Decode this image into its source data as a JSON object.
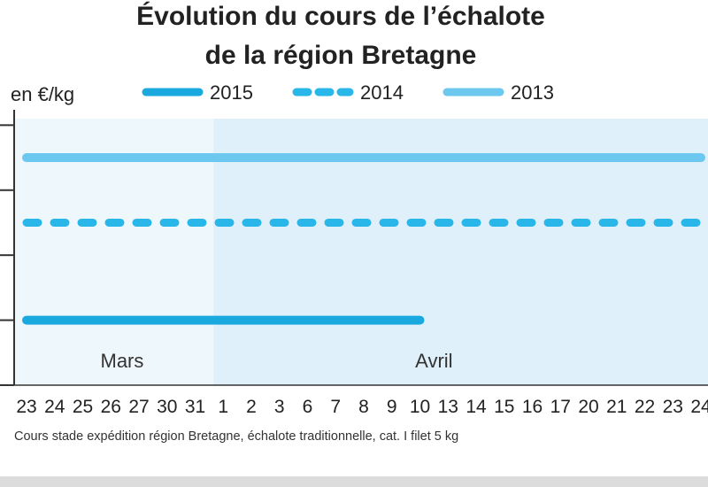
{
  "chart_data": {
    "type": "line",
    "title_line1": "Évolution du cours de l’échalote",
    "title_line2": "de la région Bretagne",
    "ylabel": "en €/kg",
    "months": [
      "Mars",
      "Avril"
    ],
    "categories": [
      "23",
      "24",
      "25",
      "26",
      "27",
      "30",
      "31",
      "1",
      "2",
      "3",
      "6",
      "7",
      "8",
      "9",
      "10",
      "13",
      "14",
      "15",
      "16",
      "17",
      "20",
      "21",
      "22",
      "23",
      "24"
    ],
    "y_ticks": [
      0,
      1,
      2,
      3,
      4
    ],
    "ylim": [
      0,
      4.1
    ],
    "grid": false,
    "legend_position": "top",
    "series": [
      {
        "name": "2015",
        "style": "solid",
        "color": "#1aa9df",
        "values": [
          1,
          1,
          1,
          1,
          1,
          1,
          1,
          1,
          1,
          1,
          1,
          1,
          1,
          1,
          1,
          null,
          null,
          null,
          null,
          null,
          null,
          null,
          null,
          null,
          null
        ]
      },
      {
        "name": "2014",
        "style": "dashed",
        "color": "#29b6e8",
        "values": [
          2.5,
          2.5,
          2.5,
          2.5,
          2.5,
          2.5,
          2.5,
          2.5,
          2.5,
          2.5,
          2.5,
          2.5,
          2.5,
          2.5,
          2.5,
          2.5,
          2.5,
          2.5,
          2.5,
          2.5,
          2.5,
          2.5,
          2.5,
          2.5,
          2.5
        ]
      },
      {
        "name": "2013",
        "style": "solid",
        "color": "#6cc8ef",
        "values": [
          3.5,
          3.5,
          3.5,
          3.5,
          3.5,
          3.5,
          3.5,
          3.5,
          3.5,
          3.5,
          3.5,
          3.5,
          3.5,
          3.5,
          3.5,
          3.5,
          3.5,
          3.5,
          3.5,
          3.5,
          3.5,
          3.5,
          3.5,
          3.5,
          3.5
        ]
      }
    ],
    "footnote": "Cours stade expédition région Bretagne, échalote traditionnelle, cat. I filet 5 kg",
    "colors": {
      "march_band": "#eef7fc",
      "april_band": "#dff0fa",
      "axis": "#333333"
    }
  }
}
